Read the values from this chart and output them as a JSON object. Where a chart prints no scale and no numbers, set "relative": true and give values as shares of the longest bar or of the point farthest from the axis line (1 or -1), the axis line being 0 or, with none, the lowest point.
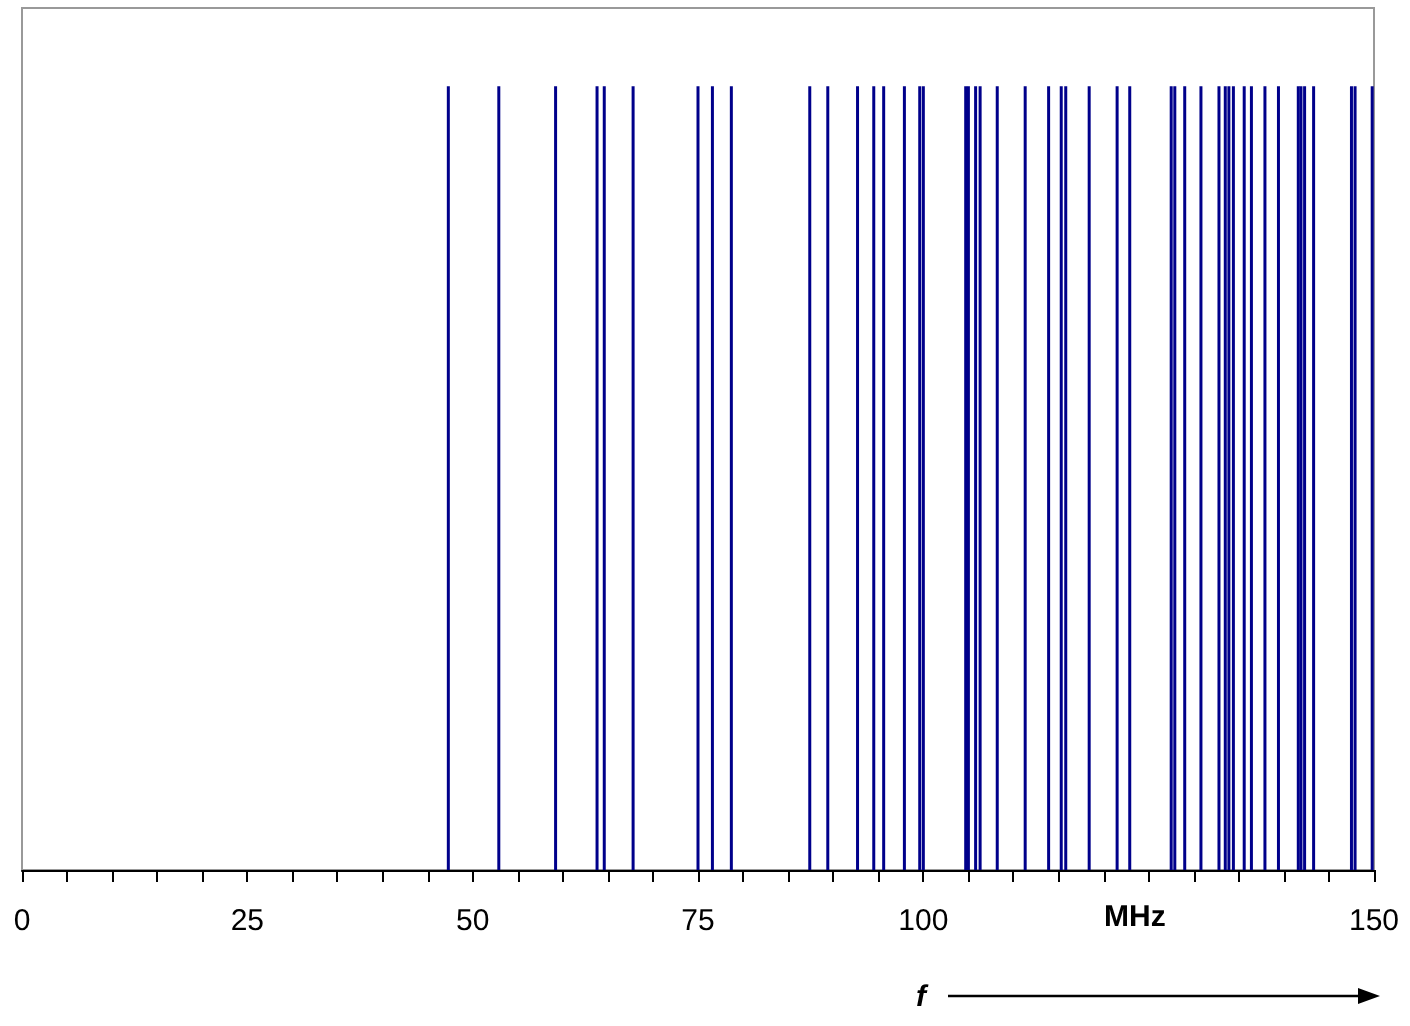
{
  "chart_data": {
    "type": "bar",
    "relative": true,
    "xlabel": "MHz",
    "annotations": [
      "f"
    ],
    "color": "#00008b",
    "x": [
      47.3,
      52.9,
      59.2,
      63.8,
      64.6,
      67.8,
      75.0,
      76.6,
      78.7,
      87.4,
      89.4,
      92.7,
      94.5,
      95.6,
      97.9,
      99.6,
      100.0,
      104.7,
      105.0,
      105.8,
      106.3,
      108.2,
      111.3,
      113.9,
      115.3,
      115.8,
      118.4,
      121.5,
      122.9,
      127.5,
      127.9,
      129.0,
      130.8,
      132.8,
      133.5,
      133.9,
      134.4,
      135.6,
      136.4,
      137.9,
      139.4,
      141.6,
      141.9,
      142.3,
      143.3,
      147.5,
      147.9,
      149.8
    ],
    "values": [
      1,
      1,
      1,
      1,
      1,
      1,
      1,
      1,
      1,
      1,
      1,
      1,
      1,
      1,
      1,
      1,
      1,
      1,
      1,
      1,
      1,
      1,
      1,
      1,
      1,
      1,
      1,
      1,
      1,
      1,
      1,
      1,
      1,
      1,
      1,
      1,
      1,
      1,
      1,
      1,
      1,
      1,
      1,
      1,
      1,
      1,
      1,
      1
    ],
    "xlim": [
      0,
      150
    ],
    "xticks": [
      0,
      {
        "value": 5,
        "label": null
      },
      {
        "value": 10,
        "label": null
      },
      {
        "value": 15,
        "label": null
      },
      {
        "value": 20,
        "label": null
      },
      25,
      {
        "value": 30,
        "label": null
      },
      {
        "value": 35,
        "label": null
      },
      {
        "value": 40,
        "label": null
      },
      {
        "value": 45,
        "label": null
      },
      50,
      {
        "value": 55,
        "label": null
      },
      {
        "value": 60,
        "label": null
      },
      {
        "value": 65,
        "label": null
      },
      {
        "value": 70,
        "label": null
      },
      75,
      {
        "value": 80,
        "label": null
      },
      {
        "value": 85,
        "label": null
      },
      {
        "value": 90,
        "label": null
      },
      {
        "value": 95,
        "label": null
      },
      100,
      {
        "value": 105,
        "label": null
      },
      {
        "value": 110,
        "label": null
      },
      {
        "value": 115,
        "label": null
      },
      {
        "value": 120,
        "label": null
      },
      {
        "value": 125,
        "label": null
      },
      {
        "value": 130,
        "label": null
      },
      {
        "value": 135,
        "label": null
      },
      {
        "value": 140,
        "label": null
      },
      {
        "value": 145,
        "label": null
      },
      150
    ]
  }
}
